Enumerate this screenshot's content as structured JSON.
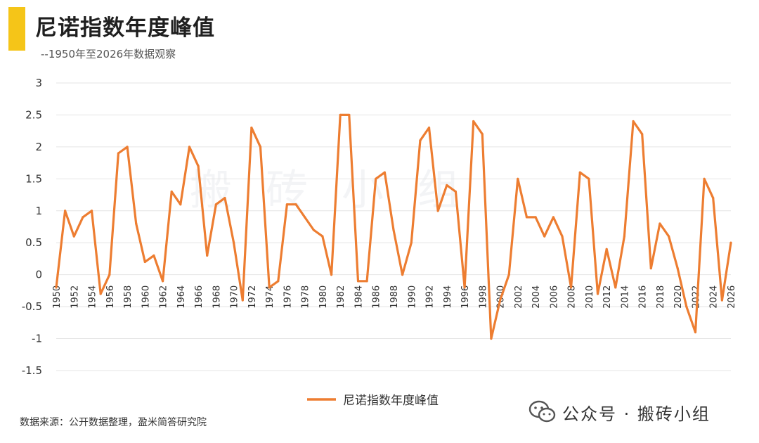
{
  "header": {
    "title": "尼诺指数年度峰值",
    "subtitle": "--1950年至2026年数据观察"
  },
  "watermark": "搬砖小组",
  "footer": {
    "source": "数据来源：公开数据整理，盈米简答研究院",
    "brand": "公众号 · 搬砖小组"
  },
  "colors": {
    "accent": "#F5C518",
    "line": "#ED7D31",
    "grid": "#E4E4E4"
  },
  "icons": {
    "brand": "wechat-icon"
  },
  "chart_data": {
    "type": "line",
    "title": "尼诺指数年度峰值",
    "ylim": [
      -1.5,
      3
    ],
    "yticks": [
      "3",
      "2.5",
      "2",
      "1.5",
      "1",
      "0.5",
      "0",
      "-0.5",
      "-1",
      "-1.5"
    ],
    "xlabels": [
      "1950",
      "1952",
      "1954",
      "1956",
      "1958",
      "1960",
      "1962",
      "1964",
      "1966",
      "1968",
      "1970",
      "1972",
      "1974",
      "1976",
      "1978",
      "1980",
      "1982",
      "1984",
      "1986",
      "1988",
      "1990",
      "1992",
      "1994",
      "1996",
      "1998",
      "2000",
      "2002",
      "2004",
      "2006",
      "2008",
      "2010",
      "2012",
      "2014",
      "2016",
      "2018",
      "2020",
      "2022",
      "2024",
      "2026"
    ],
    "grid": true,
    "legend_position": "bottom-center",
    "series": [
      {
        "name": "尼诺指数年度峰值",
        "x": [
          1950,
          1951,
          1952,
          1953,
          1954,
          1955,
          1956,
          1957,
          1958,
          1959,
          1960,
          1961,
          1962,
          1963,
          1964,
          1965,
          1966,
          1967,
          1968,
          1969,
          1970,
          1971,
          1972,
          1973,
          1974,
          1975,
          1976,
          1977,
          1978,
          1979,
          1980,
          1981,
          1982,
          1983,
          1984,
          1985,
          1986,
          1987,
          1988,
          1989,
          1990,
          1991,
          1992,
          1993,
          1994,
          1995,
          1996,
          1997,
          1998,
          1999,
          2000,
          2001,
          2002,
          2003,
          2004,
          2005,
          2006,
          2007,
          2008,
          2009,
          2010,
          2011,
          2012,
          2013,
          2014,
          2015,
          2016,
          2017,
          2018,
          2019,
          2020,
          2021,
          2022,
          2023,
          2024,
          2025,
          2026
        ],
        "values": [
          -0.2,
          1.0,
          0.6,
          0.9,
          1.0,
          -0.3,
          0.0,
          1.9,
          2.0,
          0.8,
          0.2,
          0.3,
          -0.1,
          1.3,
          1.1,
          2.0,
          1.7,
          0.3,
          1.1,
          1.2,
          0.5,
          -0.4,
          2.3,
          2.0,
          -0.2,
          -0.1,
          1.1,
          1.1,
          0.9,
          0.7,
          0.6,
          0.0,
          2.5,
          2.5,
          -0.1,
          -0.1,
          1.5,
          1.6,
          0.7,
          0.0,
          0.5,
          2.1,
          2.3,
          1.0,
          1.4,
          1.3,
          -0.2,
          2.4,
          2.2,
          -1.0,
          -0.4,
          0.0,
          1.5,
          0.9,
          0.9,
          0.6,
          0.9,
          0.6,
          -0.2,
          1.6,
          1.5,
          -0.3,
          0.4,
          -0.2,
          0.6,
          2.4,
          2.2,
          0.1,
          0.8,
          0.6,
          0.1,
          -0.5,
          -0.9,
          1.5,
          1.2,
          -0.4,
          0.5
        ]
      }
    ]
  }
}
